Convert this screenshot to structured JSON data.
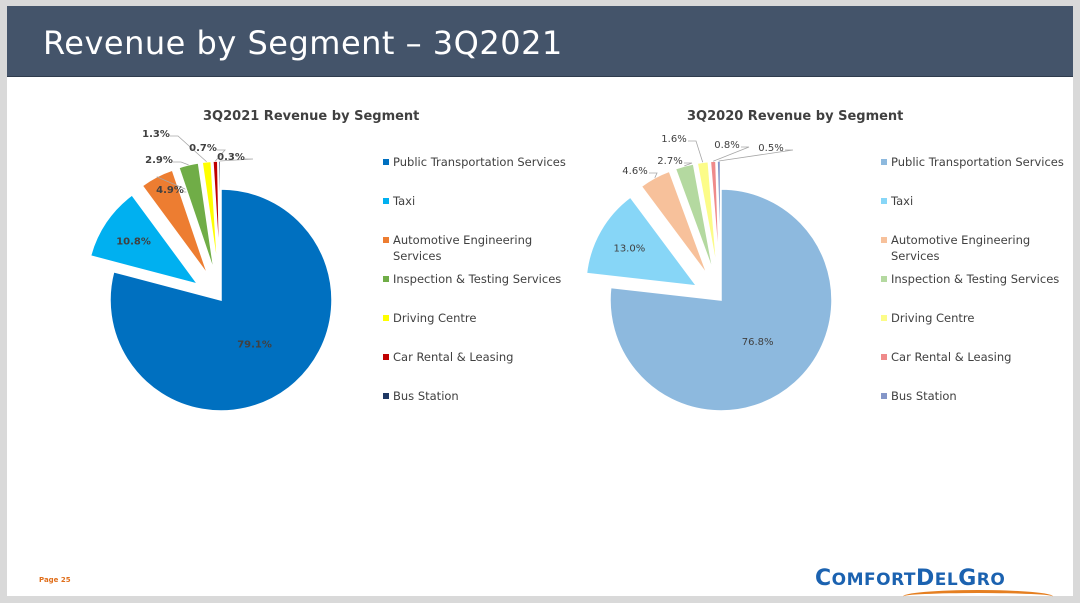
{
  "slide": {
    "title": "Revenue by Segment – 3Q2021",
    "page_label": "Page 25",
    "logo_text": "ComfortDelGro"
  },
  "chart_data": [
    {
      "type": "pie",
      "title": "3Q2021 Revenue by Segment",
      "categories": [
        "Public Transportation Services",
        "Taxi",
        "Automotive Engineering Services",
        "Inspection & Testing Services",
        "Driving Centre",
        "Car Rental & Leasing",
        "Bus Station"
      ],
      "values": [
        79.1,
        10.8,
        4.9,
        2.9,
        1.3,
        0.7,
        0.3
      ],
      "labels": [
        "79.1%",
        "10.8%",
        "4.9%",
        "2.9%",
        "1.3%",
        "0.7%",
        "0.3%"
      ],
      "colors": [
        "#0070c0",
        "#00b0f0",
        "#ed7d31",
        "#70ad47",
        "#ffff00",
        "#c00000",
        "#1f3864"
      ],
      "legend_position": "right"
    },
    {
      "type": "pie",
      "title": "3Q2020 Revenue by Segment",
      "categories": [
        "Public Transportation Services",
        "Taxi",
        "Automotive Engineering Services",
        "Inspection & Testing Services",
        "Driving Centre",
        "Car Rental & Leasing",
        "Bus Station"
      ],
      "values": [
        76.8,
        13.0,
        4.6,
        2.7,
        1.6,
        0.8,
        0.5
      ],
      "labels": [
        "76.8%",
        "13.0%",
        "4.6%",
        "2.7%",
        "1.6%",
        "0.8%",
        "0.5%"
      ],
      "colors": [
        "#8db9de",
        "#87d6f7",
        "#f7c19b",
        "#b4d9a0",
        "#fcfc88",
        "#ef8a8a",
        "#8496c8"
      ],
      "legend_position": "right"
    }
  ]
}
